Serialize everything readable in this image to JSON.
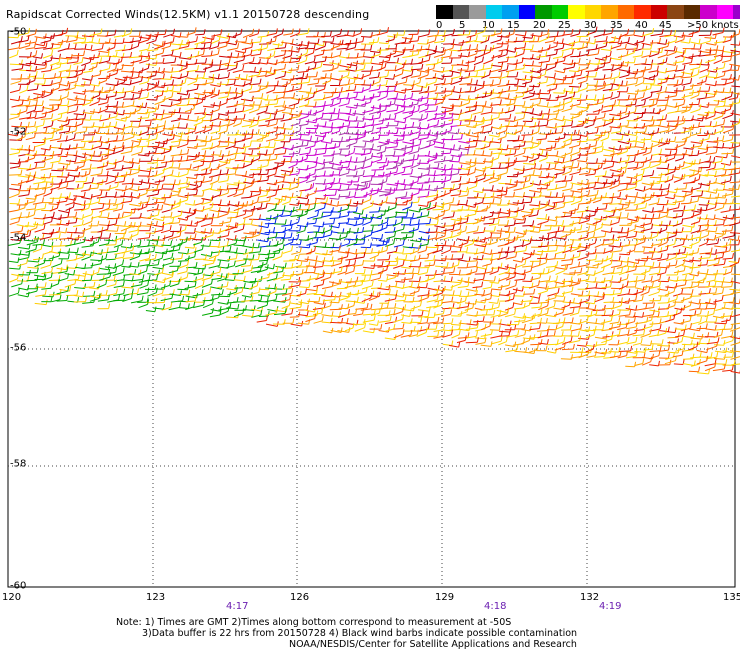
{
  "header": {
    "title": "Rapidscat Corrected Winds(12.5KM) v1.1 20150728 descending"
  },
  "colorbar": {
    "colors": [
      "#000000",
      "#555555",
      "#9a9a9a",
      "#00ccee",
      "#00a0f0",
      "#0000ff",
      "#009900",
      "#00cc00",
      "#ffff00",
      "#ffd700",
      "#ffa500",
      "#ff6a00",
      "#ff2a00",
      "#cc0000",
      "#8b4513",
      "#5a2a00",
      "#cc00cc",
      "#ff00ff",
      "#9900cc",
      "#551a8b"
    ],
    "labels": [
      "0",
      "5",
      "10",
      "15",
      "20",
      "25",
      "30",
      "35",
      "40",
      "45",
      ">50 knots"
    ]
  },
  "axes": {
    "lat_labels": [
      "-50",
      "-52",
      "-54",
      "-56",
      "-58",
      "-60"
    ],
    "lon_labels": [
      "120",
      "123",
      "126",
      "129",
      "132",
      "135"
    ]
  },
  "times": [
    "4:17",
    "4:18",
    "4:19"
  ],
  "notes": {
    "line1": "Note: 1) Times are GMT 2)Times along bottom correspond to measurement at -50S",
    "line2": "3)Data buffer is 22 hrs from 20150728 4) Black wind barbs indicate possible contamination",
    "line3": "NOAA/NESDIS/Center for Satellite Applications and Research"
  }
}
